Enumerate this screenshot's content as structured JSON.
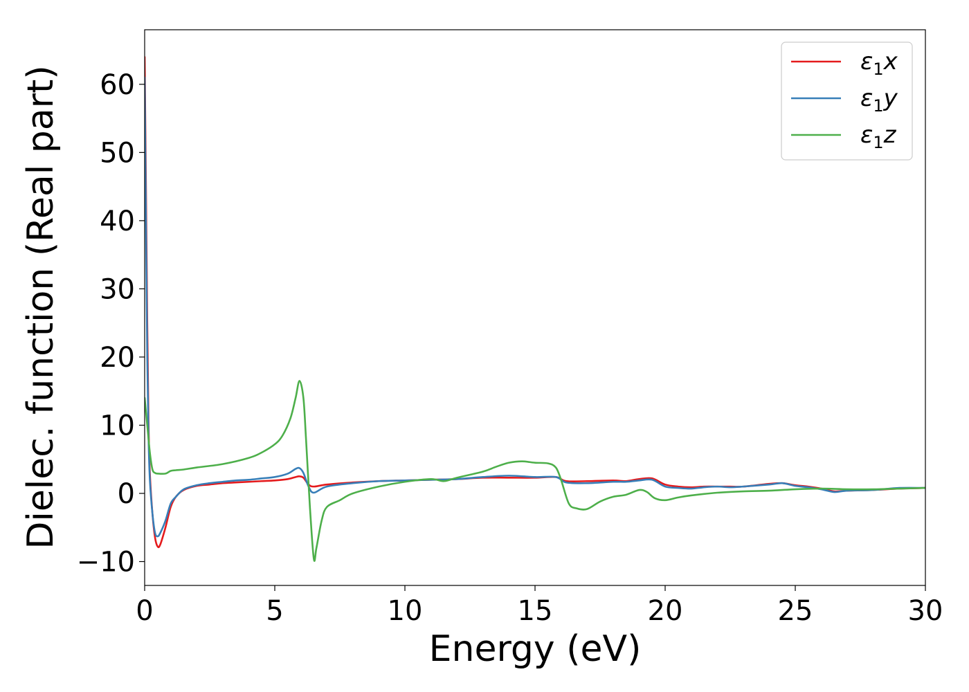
{
  "chart_data": {
    "type": "line",
    "title": "",
    "xlabel": "Energy (eV)",
    "ylabel": "Dielec. function (Real part)",
    "xlim": [
      0,
      30
    ],
    "ylim": [
      -13.5,
      68
    ],
    "xticks": [
      0,
      5,
      10,
      15,
      20,
      25,
      30
    ],
    "xtick_labels": [
      "0",
      "5",
      "10",
      "15",
      "20",
      "25",
      "30"
    ],
    "yticks": [
      -10,
      0,
      10,
      20,
      30,
      40,
      50,
      60
    ],
    "ytick_labels": [
      "−10",
      "0",
      "10",
      "20",
      "30",
      "40",
      "50",
      "60"
    ],
    "grid": false,
    "legend_position": "top-right",
    "series": [
      {
        "name": "ε₁x",
        "legend_base": "ε",
        "legend_sub": "1",
        "legend_suffix": "x",
        "color": "#e41a1c",
        "x": [
          0,
          0.05,
          0.1,
          0.15,
          0.2,
          0.3,
          0.4,
          0.5,
          0.6,
          0.8,
          1.0,
          1.2,
          1.5,
          2.0,
          2.5,
          3.0,
          3.5,
          4.0,
          4.5,
          5.0,
          5.5,
          5.8,
          5.95,
          6.1,
          6.3,
          6.5,
          7.0,
          8.0,
          9.0,
          10.0,
          11.0,
          12.0,
          13.0,
          14.0,
          15.0,
          15.8,
          16.2,
          17.0,
          18.0,
          18.5,
          19.0,
          19.5,
          20.0,
          20.5,
          21.0,
          21.5,
          22.0,
          22.5,
          23.0,
          24.0,
          24.5,
          25.0,
          25.5,
          26.0,
          26.5,
          27.0,
          28.0,
          29.0,
          30.0
        ],
        "y": [
          64,
          45,
          25,
          10,
          3,
          -3,
          -6.5,
          -7.8,
          -7.5,
          -5,
          -2,
          -0.5,
          0.5,
          1.1,
          1.3,
          1.5,
          1.6,
          1.7,
          1.8,
          1.9,
          2.1,
          2.4,
          2.5,
          2.3,
          1.3,
          1.0,
          1.3,
          1.6,
          1.8,
          1.9,
          2.0,
          2.1,
          2.3,
          2.3,
          2.3,
          2.4,
          1.8,
          1.8,
          1.9,
          1.8,
          2.1,
          2.2,
          1.3,
          1.0,
          0.9,
          1.0,
          1.0,
          1.0,
          1.0,
          1.4,
          1.5,
          1.2,
          1.0,
          0.7,
          0.3,
          0.4,
          0.5,
          0.7,
          0.8
        ]
      },
      {
        "name": "ε₁y",
        "legend_base": "ε",
        "legend_sub": "1",
        "legend_suffix": "y",
        "color": "#377eb8",
        "x": [
          0,
          0.05,
          0.1,
          0.15,
          0.2,
          0.3,
          0.4,
          0.5,
          0.6,
          0.8,
          1.0,
          1.2,
          1.5,
          2.0,
          2.5,
          3.0,
          3.5,
          4.0,
          4.5,
          5.0,
          5.5,
          5.8,
          5.95,
          6.1,
          6.3,
          6.5,
          7.0,
          8.0,
          9.0,
          10.0,
          11.0,
          12.0,
          13.0,
          14.0,
          15.0,
          15.8,
          16.2,
          17.0,
          18.0,
          18.5,
          19.0,
          19.5,
          20.0,
          20.5,
          21.0,
          21.5,
          22.0,
          22.5,
          23.0,
          24.0,
          24.5,
          25.0,
          25.5,
          26.0,
          26.5,
          27.0,
          28.0,
          29.0,
          30.0
        ],
        "y": [
          61,
          40,
          20,
          8,
          2,
          -3,
          -5.8,
          -6.3,
          -5.8,
          -4,
          -1.5,
          -0.5,
          0.6,
          1.2,
          1.5,
          1.7,
          1.9,
          2.0,
          2.2,
          2.4,
          2.9,
          3.6,
          3.7,
          3.0,
          1.0,
          0.1,
          1.0,
          1.5,
          1.8,
          1.9,
          2.0,
          2.1,
          2.4,
          2.6,
          2.4,
          2.4,
          1.6,
          1.5,
          1.7,
          1.7,
          1.9,
          2.0,
          1.0,
          0.8,
          0.7,
          0.9,
          1.0,
          0.9,
          1.0,
          1.3,
          1.5,
          1.1,
          0.9,
          0.6,
          0.2,
          0.4,
          0.5,
          0.8,
          0.8
        ]
      },
      {
        "name": "ε₁z",
        "legend_base": "ε",
        "legend_sub": "1",
        "legend_suffix": "z",
        "color": "#4daf4a",
        "x": [
          0,
          0.1,
          0.2,
          0.3,
          0.4,
          0.5,
          0.8,
          1.0,
          1.2,
          1.5,
          2.0,
          3.0,
          4.0,
          4.5,
          5.0,
          5.3,
          5.6,
          5.8,
          5.95,
          6.1,
          6.2,
          6.35,
          6.5,
          6.6,
          6.8,
          7.0,
          7.5,
          8.0,
          9.0,
          10.0,
          11.0,
          11.5,
          12.0,
          13.0,
          13.5,
          14.0,
          14.5,
          15.0,
          15.5,
          15.8,
          16.0,
          16.3,
          16.6,
          17.0,
          17.5,
          18.0,
          18.5,
          19.0,
          19.3,
          19.6,
          20.0,
          20.5,
          21.0,
          22.0,
          23.0,
          24.0,
          25.0,
          26.0,
          27.0,
          28.0,
          29.0,
          30.0
        ],
        "y": [
          14,
          10,
          6,
          3.5,
          3.0,
          2.9,
          2.9,
          3.3,
          3.4,
          3.5,
          3.8,
          4.3,
          5.2,
          6.0,
          7.2,
          8.5,
          11,
          14,
          16.5,
          14,
          8,
          -2,
          -9.6,
          -8,
          -4,
          -2,
          -1,
          0,
          1.0,
          1.7,
          2.1,
          1.8,
          2.3,
          3.2,
          3.9,
          4.5,
          4.7,
          4.5,
          4.4,
          3.8,
          2.0,
          -1.5,
          -2.2,
          -2.3,
          -1.2,
          -0.5,
          -0.2,
          0.5,
          0.2,
          -0.7,
          -1.0,
          -0.6,
          -0.3,
          0.1,
          0.3,
          0.4,
          0.6,
          0.7,
          0.6,
          0.6,
          0.7,
          0.8
        ]
      }
    ]
  }
}
